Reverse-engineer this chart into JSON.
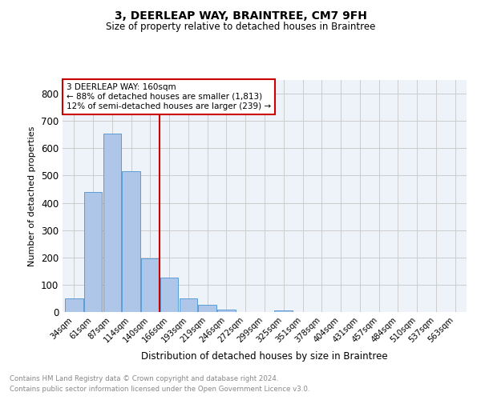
{
  "title": "3, DEERLEAP WAY, BRAINTREE, CM7 9FH",
  "subtitle": "Size of property relative to detached houses in Braintree",
  "xlabel": "Distribution of detached houses by size in Braintree",
  "ylabel": "Number of detached properties",
  "footnote1": "Contains HM Land Registry data © Crown copyright and database right 2024.",
  "footnote2": "Contains public sector information licensed under the Open Government Licence v3.0.",
  "bar_labels": [
    "34sqm",
    "61sqm",
    "87sqm",
    "114sqm",
    "140sqm",
    "166sqm",
    "193sqm",
    "219sqm",
    "246sqm",
    "272sqm",
    "299sqm",
    "325sqm",
    "351sqm",
    "378sqm",
    "404sqm",
    "431sqm",
    "457sqm",
    "484sqm",
    "510sqm",
    "537sqm",
    "563sqm"
  ],
  "bar_values": [
    50,
    440,
    655,
    515,
    195,
    125,
    50,
    25,
    10,
    0,
    0,
    5,
    0,
    0,
    0,
    0,
    0,
    0,
    0,
    0,
    0
  ],
  "bar_color": "#aec6e8",
  "bar_edge_color": "#5b9bd5",
  "property_line_x": 4.5,
  "property_line_color": "#cc0000",
  "ylim": [
    0,
    850
  ],
  "yticks": [
    0,
    100,
    200,
    300,
    400,
    500,
    600,
    700,
    800
  ],
  "annotation_text": "3 DEERLEAP WAY: 160sqm\n← 88% of detached houses are smaller (1,813)\n12% of semi-detached houses are larger (239) →",
  "annotation_box_color": "#cc0000",
  "grid_color": "#cccccc",
  "bg_color": "#eef3fa"
}
